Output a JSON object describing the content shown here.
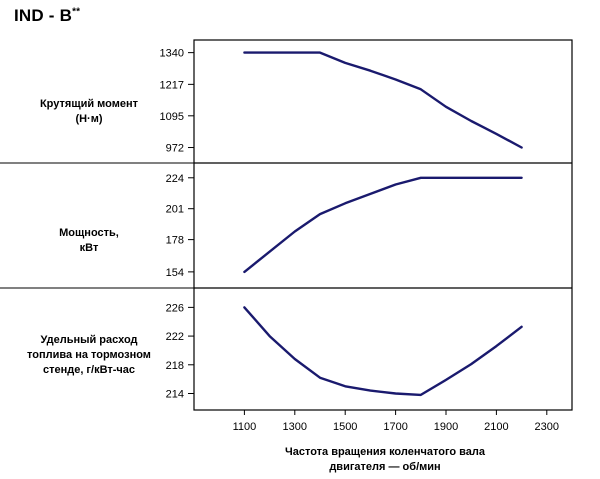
{
  "title": {
    "main": "IND - B",
    "sup": "**"
  },
  "x_axis_title_line1": "Частота вращения коленчатого вала",
  "x_axis_title_line2": "двигателя — об/мин",
  "chart_data": [
    {
      "type": "line",
      "label_lines": [
        "Крутящий момент",
        "(Н·м)"
      ],
      "x": [
        1100,
        1200,
        1300,
        1400,
        1500,
        1600,
        1700,
        1800,
        1900,
        2000,
        2100,
        2200
      ],
      "y": [
        1340,
        1340,
        1340,
        1340,
        1300,
        1270,
        1236,
        1198,
        1130,
        1075,
        1025,
        972
      ],
      "xlim": [
        900,
        2400
      ],
      "ylim": [
        912,
        1389
      ],
      "yticks": [
        1340,
        1217,
        1095,
        972
      ],
      "ytick_labels": [
        "1340",
        "1217",
        "1095",
        "972"
      ],
      "color": "#1a1a6e"
    },
    {
      "type": "line",
      "label_lines": [
        "Мощность,",
        "кВт"
      ],
      "x": [
        1100,
        1200,
        1300,
        1400,
        1500,
        1600,
        1700,
        1800,
        1900,
        2000,
        2100,
        2200
      ],
      "y": [
        154,
        169,
        184,
        197,
        205,
        212,
        219,
        224,
        224,
        224,
        224,
        224
      ],
      "xlim": [
        900,
        2400
      ],
      "ylim": [
        142,
        235
      ],
      "yticks": [
        224,
        201,
        178,
        154
      ],
      "ytick_labels": [
        "224",
        "201",
        "178",
        "154"
      ],
      "color": "#1a1a6e"
    },
    {
      "type": "line",
      "label_lines": [
        "Удельный расход",
        "топлива на тормозном",
        "стенде, г/кВт-час"
      ],
      "x": [
        1100,
        1200,
        1300,
        1400,
        1500,
        1600,
        1700,
        1800,
        1900,
        2000,
        2100,
        2200
      ],
      "y": [
        226,
        222,
        218.8,
        216.2,
        215,
        214.4,
        214,
        213.8,
        215.9,
        218.1,
        220.6,
        223.3
      ],
      "xlim": [
        900,
        2400
      ],
      "ylim": [
        211.7,
        228.7
      ],
      "yticks": [
        226,
        222,
        218,
        214
      ],
      "ytick_labels": [
        "226",
        "222",
        "218",
        "214"
      ],
      "color": "#1a1a6e"
    }
  ],
  "xticks": [
    1100,
    1300,
    1500,
    1700,
    1900,
    2100,
    2300
  ],
  "xtick_labels": [
    "1100",
    "1300",
    "1500",
    "1700",
    "1900",
    "2100",
    "2300"
  ]
}
